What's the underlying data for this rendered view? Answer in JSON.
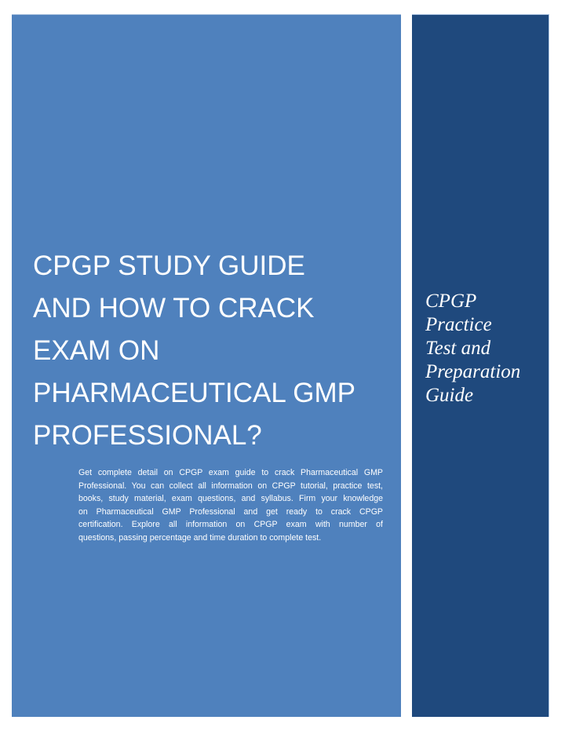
{
  "colors": {
    "main_panel": "#4F81BD",
    "side_panel": "#1F497D",
    "text": "#FFFFFF"
  },
  "cover": {
    "title_lines": [
      "CPGP STUDY GUIDE",
      "AND HOW TO CRACK",
      "EXAM ON",
      "PHARMACEUTICAL GMP",
      "PROFESSIONAL?"
    ],
    "description_lines": [
      "Get complete detail on CPGP exam guide to crack Pharmaceutical GMP",
      "Professional. You can collect all information on CPGP tutorial, practice test,",
      "books, study material, exam questions, and syllabus. Firm your knowledge",
      "on Pharmaceutical GMP Professional and get ready to crack CPGP",
      "certification. Explore all information on CPGP exam with number of",
      "questions, passing percentage and time duration to complete test."
    ]
  },
  "sidebar": {
    "tagline_lines": [
      "CPGP",
      "Practice",
      "Test and",
      "Preparation",
      "Guide"
    ]
  }
}
